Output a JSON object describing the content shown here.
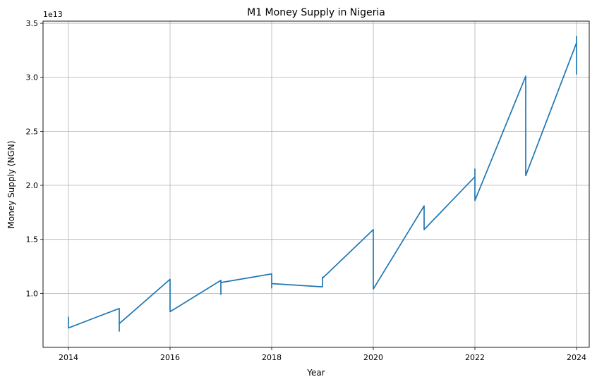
{
  "chart_data": {
    "type": "line",
    "title": "M1 Money Supply in Nigeria",
    "xlabel": "Year",
    "ylabel": "Money Supply (NGN)",
    "y_offset_label": "1e13",
    "y_scale": 10000000000000.0,
    "xlim": [
      2013.5,
      2024.25
    ],
    "ylim": [
      5.0,
      35.2
    ],
    "x_ticks": [
      2014,
      2016,
      2018,
      2020,
      2022,
      2024
    ],
    "x_tick_labels": [
      "2014",
      "2016",
      "2018",
      "2020",
      "2022",
      "2024"
    ],
    "y_ticks": [
      10,
      15,
      20,
      25,
      30,
      35
    ],
    "y_tick_labels": [
      "1.0",
      "1.5",
      "2.0",
      "2.5",
      "3.0",
      "3.5"
    ],
    "grid": true,
    "legend": false,
    "line_color": "#1f77b4",
    "series": [
      {
        "x": [
          2014.0,
          2014.0,
          2014.0,
          2014.0,
          2015.0,
          2015.0,
          2015.0,
          2015.0,
          2016.0,
          2016.0,
          2016.0,
          2016.0,
          2017.0,
          2017.0,
          2017.0,
          2017.0,
          2018.0,
          2018.0,
          2018.0,
          2018.0,
          2019.0,
          2019.0,
          2019.0,
          2019.0,
          2020.0,
          2020.0,
          2020.0,
          2020.0,
          2021.0,
          2021.0,
          2021.0,
          2021.0,
          2022.0,
          2022.0,
          2022.0,
          2022.0,
          2023.0,
          2023.0,
          2023.0,
          2023.0,
          2024.0,
          2024.0,
          2024.0,
          2024.0
        ],
        "y": [
          7.2,
          7.8,
          6.9,
          6.8,
          8.6,
          6.5,
          7.3,
          7.2,
          11.3,
          9.6,
          8.5,
          8.3,
          11.2,
          9.9,
          10.6,
          11.0,
          11.8,
          10.5,
          11.1,
          10.9,
          10.6,
          11.5,
          11.2,
          11.4,
          15.9,
          12.7,
          10.6,
          10.4,
          18.1,
          16.0,
          16.4,
          15.9,
          20.8,
          21.5,
          18.7,
          18.6,
          30.1,
          26.5,
          24.5,
          20.9,
          33.2,
          33.8,
          30.3,
          31.1
        ]
      }
    ]
  }
}
